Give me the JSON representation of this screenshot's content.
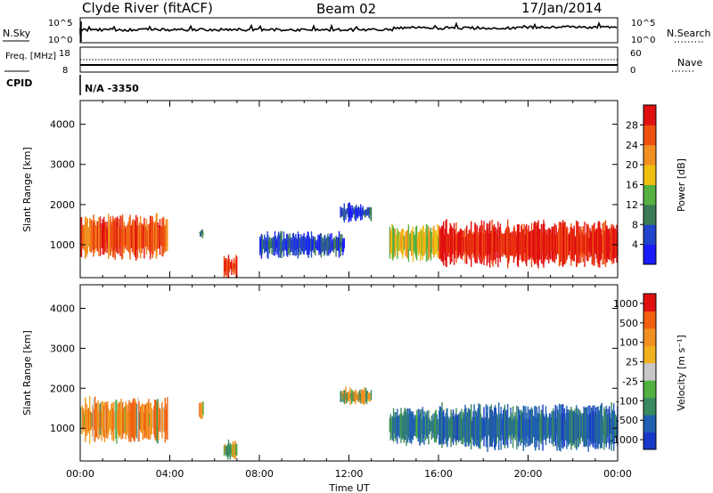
{
  "header": {
    "station": "Clyde River (fitACF)",
    "beam": "Beam 02",
    "date": "17/Jan/2014"
  },
  "chart_data": [
    {
      "panel": "noise",
      "type": "line",
      "left_label": "N.Sky",
      "right_label": "N.Search",
      "left_ticks": [
        "10^5",
        "10^0"
      ],
      "right_ticks": [
        "10^5",
        "10^0"
      ],
      "series": [
        {
          "name": "N.Sky",
          "style": "line"
        },
        {
          "name": "N.Search",
          "style": "dotted"
        }
      ]
    },
    {
      "panel": "freq_nave",
      "type": "line",
      "left_label": "Freq. [MHz]",
      "right_label": "Nave",
      "left_ticks": [
        "18",
        "8"
      ],
      "right_ticks": [
        "60",
        "0"
      ],
      "series": [
        {
          "name": "Freq.",
          "approx_value": 10
        },
        {
          "name": "Nave",
          "approx_value": 30
        }
      ]
    },
    {
      "panel": "cpid",
      "type": "table",
      "label": "CPID",
      "value": "N/A -3350"
    },
    {
      "panel": "power",
      "type": "heatmap",
      "x_tick_labels": [
        "00:00",
        "04:00",
        "08:00",
        "12:00",
        "16:00",
        "20:00",
        "00:00"
      ],
      "xlim_hours": [
        0,
        24
      ],
      "ylabel": "Slant Range [km]",
      "y_ticks": [
        1000,
        2000,
        3000,
        4000
      ],
      "ylim_km": [
        180,
        4590
      ],
      "colorbar_label": "Power [dB]",
      "colorbar_ticks": [
        "4",
        "8",
        "12",
        "16",
        "20",
        "24",
        "28"
      ],
      "colorbar_colors": [
        "#1a1aff",
        "#2244cc",
        "#3a7a55",
        "#55b040",
        "#f0c010",
        "#f09020",
        "#ee5010",
        "#e01010"
      ],
      "regions": [
        {
          "t0": 0.0,
          "t1": 3.9,
          "r0": 650,
          "r1": 1750,
          "mean_db": 26
        },
        {
          "t0": 5.3,
          "t1": 5.5,
          "r0": 1200,
          "r1": 1400,
          "mean_db": 8
        },
        {
          "t0": 6.4,
          "t1": 7.0,
          "r0": 200,
          "r1": 700,
          "mean_db": 30
        },
        {
          "t0": 8.0,
          "t1": 11.8,
          "r0": 700,
          "r1": 1300,
          "mean_db": 6
        },
        {
          "t0": 11.6,
          "t1": 13.0,
          "r0": 1600,
          "r1": 2000,
          "mean_db": 6
        },
        {
          "t0": 13.8,
          "t1": 16.0,
          "r0": 600,
          "r1": 1500,
          "mean_db": 18
        },
        {
          "t0": 16.0,
          "t1": 24.0,
          "r0": 450,
          "r1": 1600,
          "mean_db": 30
        }
      ]
    },
    {
      "panel": "velocity",
      "type": "heatmap",
      "x_tick_labels": [
        "00:00",
        "04:00",
        "08:00",
        "12:00",
        "16:00",
        "20:00",
        "00:00"
      ],
      "xlim_hours": [
        0,
        24
      ],
      "xlabel": "Time UT",
      "ylabel": "Slant Range [km]",
      "y_ticks": [
        1000,
        2000,
        3000,
        4000
      ],
      "ylim_km": [
        180,
        4590
      ],
      "colorbar_label": "Velocity [m s⁻¹]",
      "colorbar_ticks": [
        "1000",
        "500",
        "100",
        "25",
        "-25",
        "-100",
        "-500",
        "-1000"
      ],
      "colorbar_colors": [
        "#1838c8",
        "#2060b0",
        "#3a8a60",
        "#50b040",
        "#c8c8c8",
        "#f0b020",
        "#f09020",
        "#f06010",
        "#e01010"
      ],
      "regions": [
        {
          "t0": 0.0,
          "t1": 3.9,
          "r0": 650,
          "r1": 1750,
          "mean_ms": -300
        },
        {
          "t0": 5.3,
          "t1": 5.5,
          "r0": 1200,
          "r1": 1700,
          "mean_ms": -300
        },
        {
          "t0": 6.4,
          "t1": 7.0,
          "r0": 200,
          "r1": 700,
          "mean_ms": 50
        },
        {
          "t0": 11.6,
          "t1": 13.0,
          "r0": 1600,
          "r1": 2000,
          "mean_ms": 0
        },
        {
          "t0": 13.8,
          "t1": 16.0,
          "r0": 600,
          "r1": 1500,
          "mean_ms": 500
        },
        {
          "t0": 16.0,
          "t1": 24.0,
          "r0": 450,
          "r1": 1600,
          "mean_ms": 700
        }
      ]
    }
  ]
}
